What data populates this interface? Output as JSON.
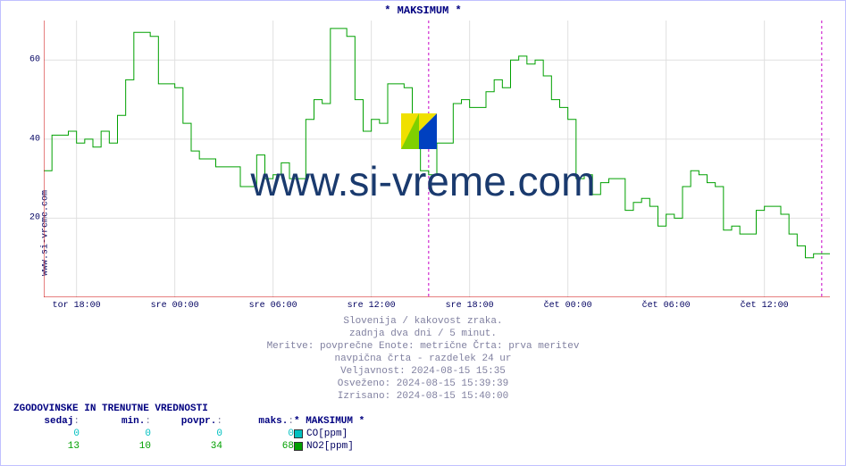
{
  "title": "* MAKSIMUM *",
  "ylabel": "www.si-vreme.com",
  "watermark": "www.si-vreme.com",
  "plot": {
    "x_min": 0,
    "x_max": 48,
    "y_min": 0,
    "y_max": 70,
    "yticks": [
      20,
      40,
      60
    ],
    "xticks": [
      {
        "pos": 2,
        "label": "tor 18:00"
      },
      {
        "pos": 8,
        "label": "sre 00:00"
      },
      {
        "pos": 14,
        "label": "sre 06:00"
      },
      {
        "pos": 20,
        "label": "sre 12:00"
      },
      {
        "pos": 26,
        "label": "sre 18:00"
      },
      {
        "pos": 32,
        "label": "čet 00:00"
      },
      {
        "pos": 38,
        "label": "čet 06:00"
      },
      {
        "pos": 44,
        "label": "čet 12:00"
      }
    ],
    "grid_color": "#e0e0e0",
    "axis_color": "#cc0000",
    "vline_color": "#c800c8",
    "vlines": [
      23.5,
      47.5
    ],
    "series": {
      "co": {
        "color": "#00c0c0",
        "points": []
      },
      "no2": {
        "color": "#00a000",
        "points": [
          [
            0,
            32
          ],
          [
            0.5,
            32
          ],
          [
            0.5,
            41
          ],
          [
            1.5,
            41
          ],
          [
            1.5,
            42
          ],
          [
            2,
            42
          ],
          [
            2,
            39
          ],
          [
            2.5,
            39
          ],
          [
            2.5,
            40
          ],
          [
            3,
            40
          ],
          [
            3,
            38
          ],
          [
            3.5,
            38
          ],
          [
            3.5,
            42
          ],
          [
            4,
            42
          ],
          [
            4,
            39
          ],
          [
            4.5,
            39
          ],
          [
            4.5,
            46
          ],
          [
            5,
            46
          ],
          [
            5,
            55
          ],
          [
            5.5,
            55
          ],
          [
            5.5,
            67
          ],
          [
            6.5,
            67
          ],
          [
            6.5,
            66
          ],
          [
            7,
            66
          ],
          [
            7,
            54
          ],
          [
            8,
            54
          ],
          [
            8,
            53
          ],
          [
            8.5,
            53
          ],
          [
            8.5,
            44
          ],
          [
            9,
            44
          ],
          [
            9,
            37
          ],
          [
            9.5,
            37
          ],
          [
            9.5,
            35
          ],
          [
            10.5,
            35
          ],
          [
            10.5,
            33
          ],
          [
            12,
            33
          ],
          [
            12,
            28
          ],
          [
            13,
            28
          ],
          [
            13,
            36
          ],
          [
            13.5,
            36
          ],
          [
            13.5,
            30
          ],
          [
            14,
            30
          ],
          [
            14,
            31
          ],
          [
            14.5,
            31
          ],
          [
            14.5,
            34
          ],
          [
            15,
            34
          ],
          [
            15,
            30
          ],
          [
            16,
            30
          ],
          [
            16,
            45
          ],
          [
            16.5,
            45
          ],
          [
            16.5,
            50
          ],
          [
            17,
            50
          ],
          [
            17,
            49
          ],
          [
            17.5,
            49
          ],
          [
            17.5,
            68
          ],
          [
            18.5,
            68
          ],
          [
            18.5,
            66
          ],
          [
            19,
            66
          ],
          [
            19,
            50
          ],
          [
            19.5,
            50
          ],
          [
            19.5,
            42
          ],
          [
            20,
            42
          ],
          [
            20,
            45
          ],
          [
            20.5,
            45
          ],
          [
            20.5,
            44
          ],
          [
            21,
            44
          ],
          [
            21,
            54
          ],
          [
            22,
            54
          ],
          [
            22,
            53
          ],
          [
            22.5,
            53
          ],
          [
            22.5,
            40
          ],
          [
            23,
            40
          ],
          [
            23,
            32
          ],
          [
            23.5,
            32
          ],
          [
            23.5,
            31
          ],
          [
            24,
            31
          ],
          [
            24,
            39
          ],
          [
            25,
            39
          ],
          [
            25,
            49
          ],
          [
            25.5,
            49
          ],
          [
            25.5,
            50
          ],
          [
            26,
            50
          ],
          [
            26,
            48
          ],
          [
            27,
            48
          ],
          [
            27,
            52
          ],
          [
            27.5,
            52
          ],
          [
            27.5,
            55
          ],
          [
            28,
            55
          ],
          [
            28,
            53
          ],
          [
            28.5,
            53
          ],
          [
            28.5,
            60
          ],
          [
            29,
            60
          ],
          [
            29,
            61
          ],
          [
            29.5,
            61
          ],
          [
            29.5,
            59
          ],
          [
            30,
            59
          ],
          [
            30,
            60
          ],
          [
            30.5,
            60
          ],
          [
            30.5,
            56
          ],
          [
            31,
            56
          ],
          [
            31,
            50
          ],
          [
            31.5,
            50
          ],
          [
            31.5,
            48
          ],
          [
            32,
            48
          ],
          [
            32,
            45
          ],
          [
            32.5,
            45
          ],
          [
            32.5,
            30
          ],
          [
            33,
            30
          ],
          [
            33,
            31
          ],
          [
            33.5,
            31
          ],
          [
            33.5,
            26
          ],
          [
            34,
            26
          ],
          [
            34,
            29
          ],
          [
            34.5,
            29
          ],
          [
            34.5,
            30
          ],
          [
            35.5,
            30
          ],
          [
            35.5,
            22
          ],
          [
            36,
            22
          ],
          [
            36,
            24
          ],
          [
            36.5,
            24
          ],
          [
            36.5,
            25
          ],
          [
            37,
            25
          ],
          [
            37,
            23
          ],
          [
            37.5,
            23
          ],
          [
            37.5,
            18
          ],
          [
            38,
            18
          ],
          [
            38,
            21
          ],
          [
            38.5,
            21
          ],
          [
            38.5,
            20
          ],
          [
            39,
            20
          ],
          [
            39,
            28
          ],
          [
            39.5,
            28
          ],
          [
            39.5,
            32
          ],
          [
            40,
            32
          ],
          [
            40,
            31
          ],
          [
            40.5,
            31
          ],
          [
            40.5,
            29
          ],
          [
            41,
            29
          ],
          [
            41,
            28
          ],
          [
            41.5,
            28
          ],
          [
            41.5,
            17
          ],
          [
            42,
            17
          ],
          [
            42,
            18
          ],
          [
            42.5,
            18
          ],
          [
            42.5,
            16
          ],
          [
            43.5,
            16
          ],
          [
            43.5,
            22
          ],
          [
            44,
            22
          ],
          [
            44,
            23
          ],
          [
            45,
            23
          ],
          [
            45,
            21
          ],
          [
            45.5,
            21
          ],
          [
            45.5,
            16
          ],
          [
            46,
            16
          ],
          [
            46,
            13
          ],
          [
            46.5,
            13
          ],
          [
            46.5,
            10
          ],
          [
            47,
            10
          ],
          [
            47,
            11
          ],
          [
            48,
            11
          ]
        ]
      }
    }
  },
  "caption": {
    "l1": "Slovenija / kakovost zraka.",
    "l2": "zadnja dva dni / 5 minut.",
    "l3": "Meritve: povprečne  Enote: metrične  Črta: prva meritev",
    "l4": "navpična črta - razdelek 24 ur",
    "l5": "Veljavnost: 2024-08-15 15:35",
    "l6": "Osveženo: 2024-08-15 15:39:39",
    "l7": "Izrisano: 2024-08-15 15:40:00"
  },
  "table": {
    "title": "ZGODOVINSKE IN TRENUTNE VREDNOSTI",
    "headers": [
      "sedaj",
      "min.",
      "povpr.",
      "maks."
    ],
    "rows": [
      {
        "vals": [
          "0",
          "0",
          "0",
          "0"
        ],
        "color": "#00c0c0"
      },
      {
        "vals": [
          "13",
          "10",
          "34",
          "68"
        ],
        "color": "#00a000"
      }
    ]
  },
  "legend": {
    "title": "* MAKSIMUM *",
    "items": [
      {
        "label": "CO[ppm]",
        "color": "#00c0c0"
      },
      {
        "label": "NO2[ppm]",
        "color": "#00a000"
      }
    ]
  }
}
